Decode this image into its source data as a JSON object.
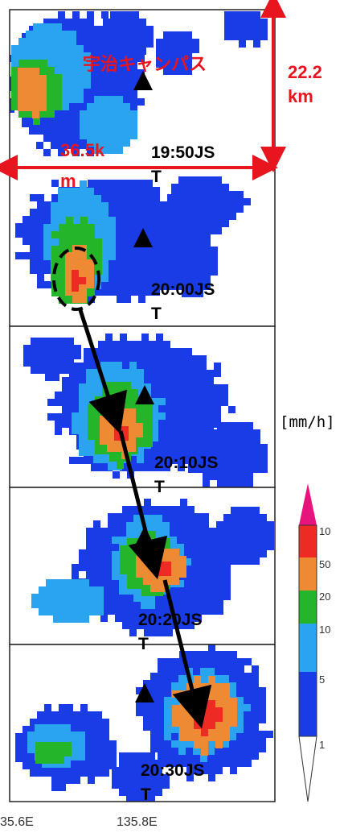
{
  "campus_label": "宇治キャンパス",
  "height_label": "22.2\nkm",
  "width_label": "36.5k\nm",
  "unit_label": "[mm/h]",
  "longitude_labels": [
    "35.6E",
    "135.8E"
  ],
  "legend_values": [
    "10",
    "50",
    "20",
    "10",
    "5",
    "1"
  ],
  "legend_colors": [
    "#1a3ce6",
    "#2aa4ee",
    "#25b52a",
    "#ee8a33",
    "#ee2a24",
    "#e6147c"
  ],
  "panels": [
    {
      "time_line1": "19:50JS",
      "time_line2": "T"
    },
    {
      "time_line1": "20:00JS",
      "time_line2": "T"
    },
    {
      "time_line1": "20:10JS",
      "time_line2": "T"
    },
    {
      "time_line1": "20:20JS",
      "time_line2": "T"
    },
    {
      "time_line1": "20:30JS",
      "time_line2": "T"
    }
  ],
  "colors": {
    "annotation_red": "#e8141e",
    "radar_blue": "#1a3ce6"
  }
}
